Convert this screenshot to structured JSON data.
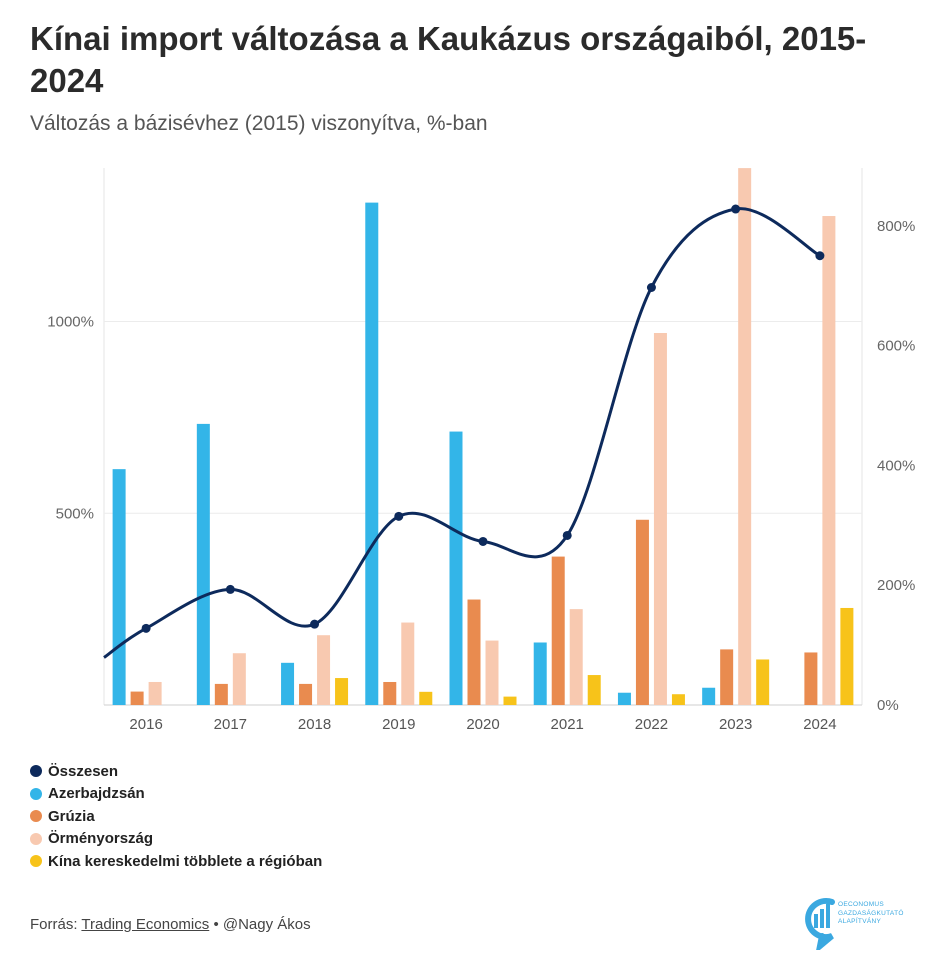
{
  "title": "Kínai import változása a Kaukázus országaiból, 2015-2024",
  "subtitle": "Változás a bázisévhez (2015) viszonyítva, %-ban",
  "source": {
    "prefix": "Forrás:",
    "link": "Trading Economics",
    "suffix": "• @Nagy Ákos"
  },
  "logo": {
    "lines": [
      "OECONOMUS",
      "GAZDASÁGKUTATÓ",
      "ALAPÍTVÁNY"
    ]
  },
  "colors": {
    "Összesen": "#0d2a5c",
    "Azerbajdzsán": "#33b5e8",
    "Grúzia": "#e98b4f",
    "Örményország": "#f8c9b0",
    "Kína kereskedelmi többlete a régióban": "#f7c31a"
  },
  "chart_data": {
    "type": "bar",
    "categories": [
      "2016",
      "2017",
      "2018",
      "2019",
      "2020",
      "2021",
      "2022",
      "2023",
      "2024"
    ],
    "left_axis": {
      "ticks": [
        500,
        1000
      ],
      "tick_labels": [
        "500%",
        "1000%"
      ]
    },
    "right_axis": {
      "ticks": [
        0,
        200,
        400,
        600,
        800
      ],
      "tick_labels": [
        "0%",
        "200%",
        "400%",
        "600%",
        "800%"
      ]
    },
    "series": [
      {
        "name": "Azerbajdzsán",
        "axis": "left",
        "values": [
          615,
          733,
          110,
          1310,
          713,
          163,
          32,
          45,
          0
        ]
      },
      {
        "name": "Grúzia",
        "axis": "left",
        "values": [
          35,
          55,
          55,
          60,
          275,
          387,
          483,
          145,
          137
        ]
      },
      {
        "name": "Örményország",
        "axis": "left",
        "values": [
          60,
          135,
          182,
          215,
          168,
          250,
          970,
          1400,
          1275
        ]
      },
      {
        "name": "Kína kereskedelmi többlete a régióban",
        "axis": "right",
        "values": [
          0,
          0,
          45,
          22,
          14,
          50,
          18,
          76,
          162
        ]
      },
      {
        "name": "Összesen",
        "axis": "right",
        "type": "line",
        "values": [
          128,
          193,
          135,
          315,
          273,
          283,
          697,
          828,
          750
        ]
      }
    ],
    "legend": {
      "position": "bottom-left",
      "entries": [
        "Összesen",
        "Azerbajdzsán",
        "Grúzia",
        "Örményország",
        "Kína kereskedelmi többlete a régióban"
      ]
    },
    "grid": true
  }
}
